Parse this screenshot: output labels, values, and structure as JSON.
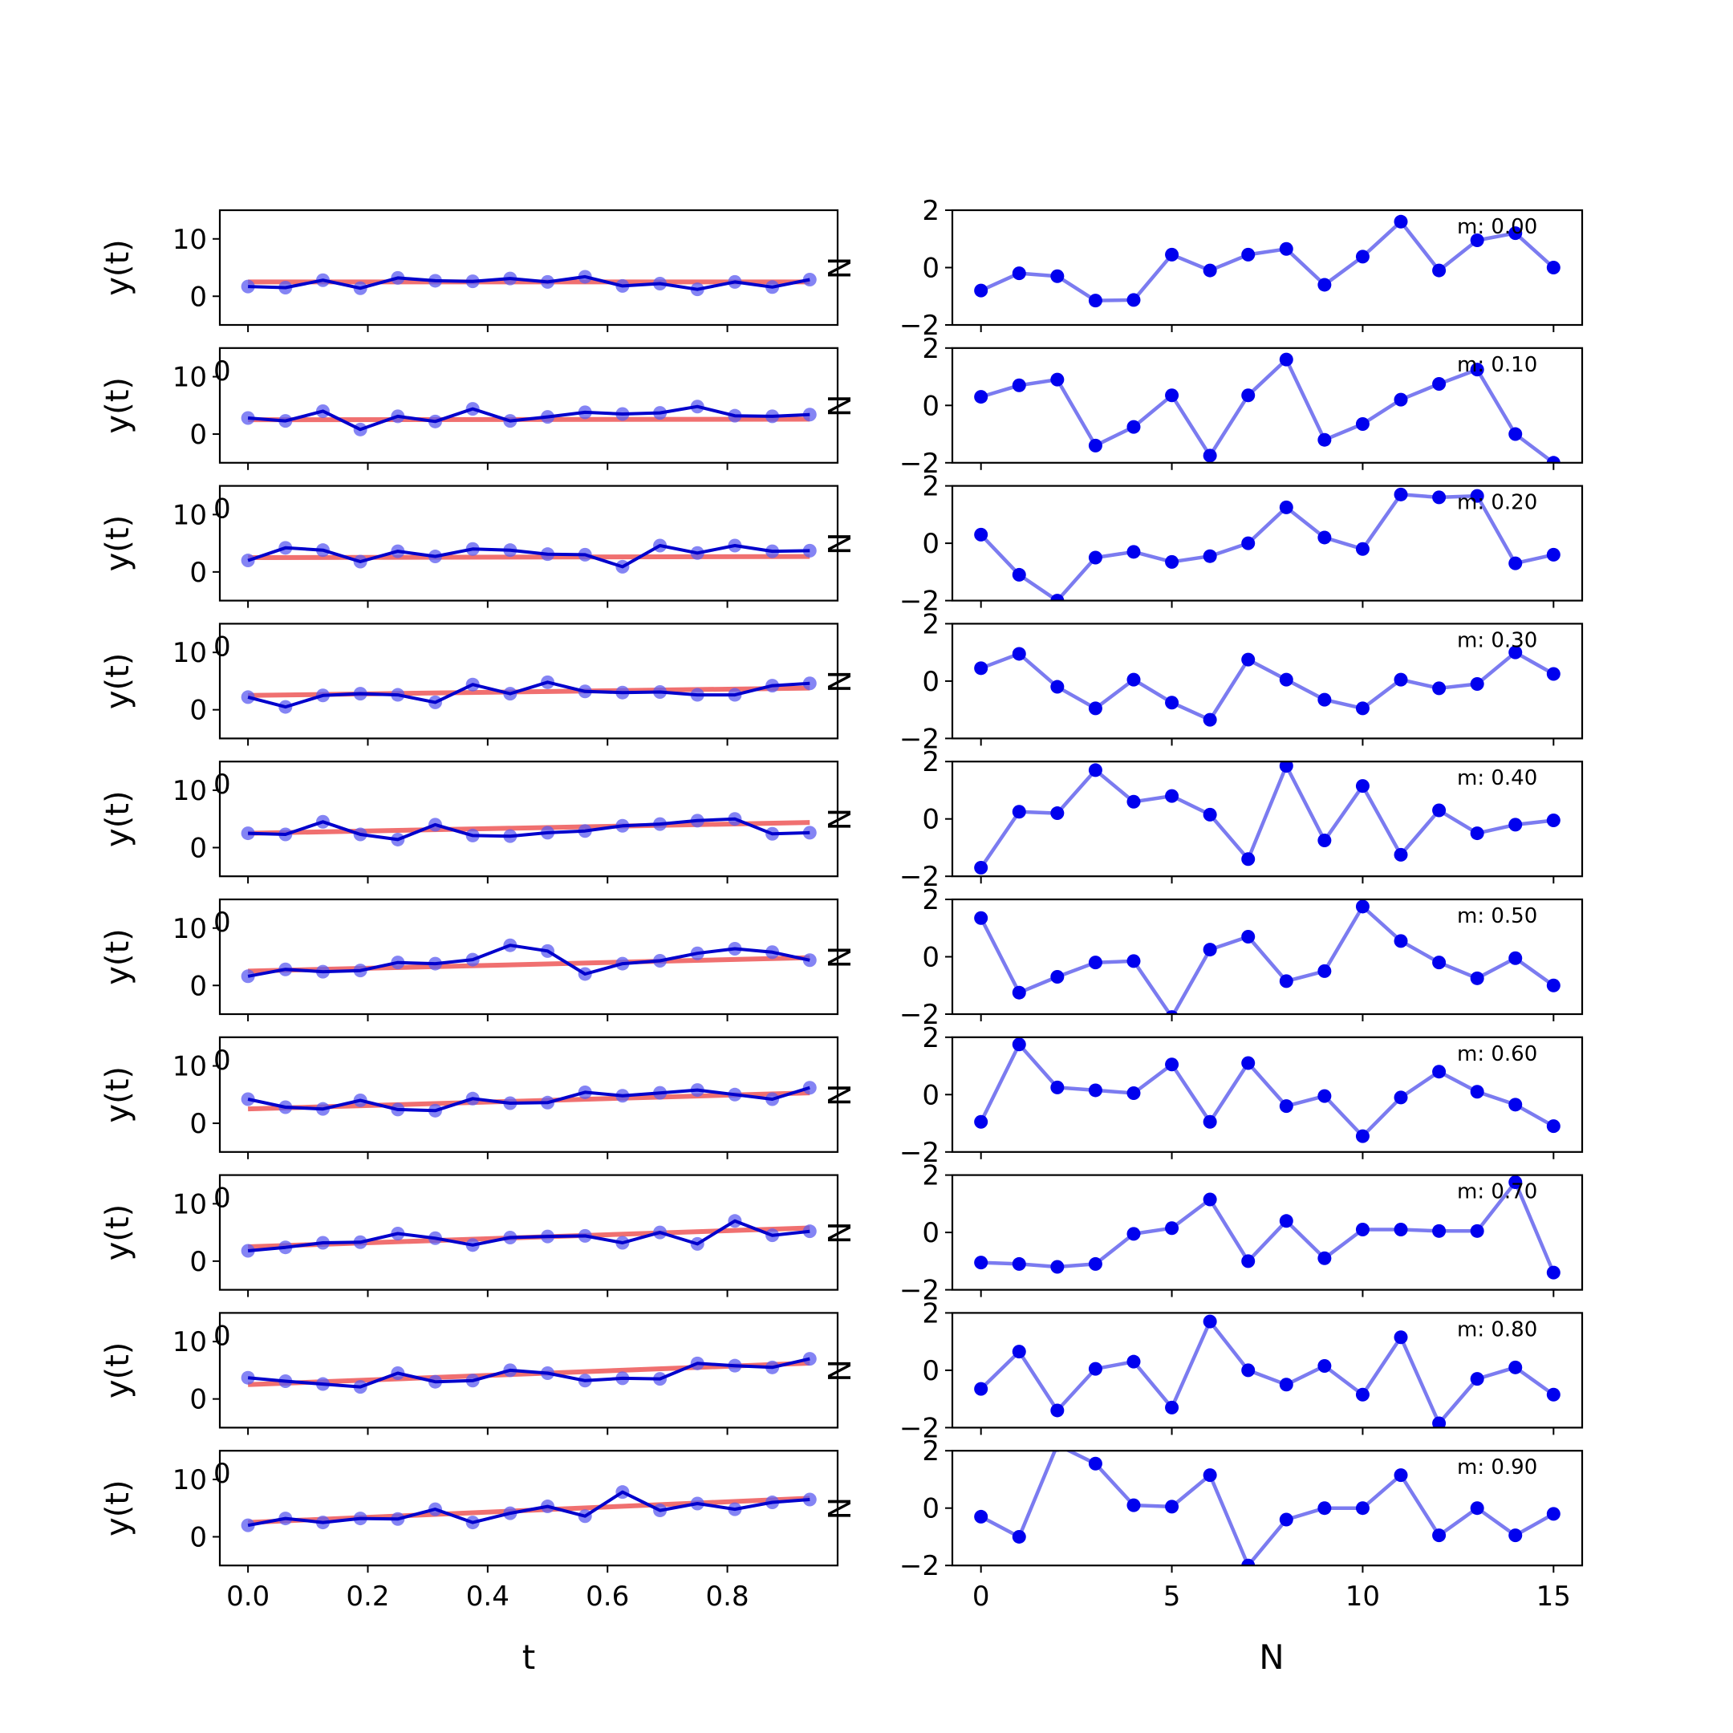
{
  "chart_data": {
    "type": "line",
    "t": [
      0.0,
      0.0625,
      0.125,
      0.1875,
      0.25,
      0.3125,
      0.375,
      0.4375,
      0.5,
      0.5625,
      0.625,
      0.6875,
      0.75,
      0.8125,
      0.875,
      0.9375
    ],
    "n": [
      0,
      1,
      2,
      3,
      4,
      5,
      6,
      7,
      8,
      9,
      10,
      11,
      12,
      13,
      14,
      15
    ],
    "left_axes": {
      "xlabel": "t",
      "ylabel": "y(t)",
      "xlim": [
        -0.047,
        0.984
      ],
      "ylim": [
        -5,
        15
      ],
      "xticks": [
        "0.0",
        "0.2",
        "0.4",
        "0.6",
        "0.8"
      ],
      "xtick_values": [
        0.0,
        0.2,
        0.4,
        0.6,
        0.8
      ],
      "yticks": [
        "0",
        "10"
      ],
      "ytick_values": [
        0,
        10
      ],
      "right_spine_label": "N"
    },
    "right_axes": {
      "xlabel": "N",
      "xlim": [
        -0.75,
        15.75
      ],
      "ylim": [
        -2,
        2
      ],
      "xticks": [
        "0",
        "5",
        "10",
        "15"
      ],
      "xtick_values": [
        0,
        5,
        10,
        15
      ],
      "yticks": [
        "−2",
        "0",
        "2"
      ],
      "ytick_values": [
        -2,
        0,
        2
      ]
    },
    "colors": {
      "data_line": "#0000cc",
      "data_markers": "#5b5bf0",
      "fit_line": "#f07070",
      "noise_line": "#7b7bf0",
      "noise_markers": "#0000ee"
    },
    "panels": [
      {
        "label": "m: 0.00",
        "fit": [
          2.5,
          2.5
        ],
        "y": [
          1.7,
          1.5,
          2.8,
          1.4,
          3.2,
          2.7,
          2.6,
          3.1,
          2.5,
          3.4,
          1.8,
          2.2,
          1.2,
          2.5,
          1.6,
          2.9
        ],
        "noise": [
          -0.8,
          -0.2,
          -0.3,
          -1.15,
          -1.13,
          0.45,
          -0.1,
          0.45,
          0.65,
          -0.6,
          0.38,
          1.6,
          -0.1,
          0.95,
          1.2,
          0.0
        ]
      },
      {
        "label": "m: 0.10",
        "fit": [
          2.5,
          2.59
        ],
        "y": [
          2.8,
          2.3,
          4.0,
          0.8,
          3.1,
          2.2,
          4.4,
          2.3,
          3.0,
          3.8,
          3.5,
          3.7,
          4.8,
          3.2,
          3.1,
          3.4
        ],
        "noise": [
          0.3,
          0.7,
          0.9,
          -1.4,
          -0.75,
          0.35,
          -1.75,
          0.35,
          1.6,
          -1.2,
          -0.65,
          0.2,
          0.75,
          1.25,
          -1.0,
          -2.0
        ]
      },
      {
        "label": "m: 0.20",
        "fit": [
          2.5,
          2.69
        ],
        "y": [
          2.0,
          4.2,
          3.8,
          1.8,
          3.6,
          2.7,
          4.0,
          3.8,
          3.1,
          3.0,
          0.9,
          4.6,
          3.3,
          4.6,
          3.6,
          3.7
        ],
        "noise": [
          0.3,
          -1.1,
          -2.0,
          -0.5,
          -0.3,
          -0.65,
          -0.45,
          0.0,
          1.25,
          0.2,
          -0.2,
          1.7,
          1.6,
          1.65,
          -0.7,
          -0.4
        ]
      },
      {
        "label": "m: 0.30",
        "fit": [
          2.5,
          3.78
        ],
        "y": [
          2.2,
          0.5,
          2.5,
          2.8,
          2.6,
          1.3,
          4.4,
          2.8,
          4.8,
          3.2,
          3.0,
          3.1,
          2.6,
          2.6,
          4.2,
          4.6
        ],
        "noise": [
          0.45,
          0.95,
          -0.2,
          -0.95,
          0.05,
          -0.75,
          -1.35,
          0.75,
          0.05,
          -0.65,
          -0.95,
          0.05,
          -0.25,
          -0.1,
          1.0,
          0.25
        ]
      },
      {
        "label": "m: 0.40",
        "fit": [
          2.5,
          4.38
        ],
        "y": [
          2.5,
          2.3,
          4.5,
          2.3,
          1.4,
          4.0,
          2.1,
          2.0,
          2.6,
          2.9,
          3.8,
          4.1,
          4.7,
          5.0,
          2.4,
          2.6
        ],
        "noise": [
          -1.7,
          0.25,
          0.2,
          1.7,
          0.6,
          0.8,
          0.15,
          -1.4,
          1.85,
          -0.75,
          1.15,
          -1.25,
          0.3,
          -0.5,
          -0.2,
          -0.05
        ]
      },
      {
        "label": "m: 0.50",
        "fit": [
          2.5,
          4.84
        ],
        "y": [
          1.6,
          2.8,
          2.4,
          2.6,
          4.0,
          3.8,
          4.5,
          7.0,
          6.0,
          2.0,
          3.8,
          4.3,
          5.6,
          6.4,
          5.8,
          4.4
        ],
        "noise": [
          1.35,
          -1.25,
          -0.7,
          -0.2,
          -0.15,
          -2.1,
          0.25,
          0.7,
          -0.85,
          -0.5,
          1.75,
          0.55,
          -0.2,
          -0.75,
          -0.05,
          -1.0
        ]
      },
      {
        "label": "m: 0.60",
        "fit": [
          2.5,
          5.31
        ],
        "y": [
          4.2,
          2.8,
          2.5,
          4.0,
          2.4,
          2.2,
          4.3,
          3.5,
          3.6,
          5.4,
          4.8,
          5.3,
          5.8,
          5.0,
          4.2,
          6.2
        ],
        "noise": [
          -0.95,
          1.75,
          0.25,
          0.15,
          0.05,
          1.05,
          -0.95,
          1.1,
          -0.4,
          -0.05,
          -1.45,
          -0.1,
          0.8,
          0.1,
          -0.35,
          -1.1
        ]
      },
      {
        "label": "m: 0.70",
        "fit": [
          2.5,
          5.78
        ],
        "y": [
          1.8,
          2.4,
          3.2,
          3.3,
          4.8,
          4.0,
          2.8,
          4.1,
          4.3,
          4.4,
          3.2,
          5.0,
          3.0,
          7.0,
          4.5,
          5.2
        ],
        "noise": [
          -1.05,
          -1.1,
          -1.2,
          -1.1,
          -0.05,
          0.15,
          1.15,
          -1.0,
          0.4,
          -0.9,
          0.1,
          0.1,
          0.05,
          0.05,
          1.75,
          -1.4
        ]
      },
      {
        "label": "m: 0.80",
        "fit": [
          2.5,
          6.25
        ],
        "y": [
          3.7,
          3.1,
          2.6,
          2.1,
          4.5,
          3.0,
          3.2,
          5.0,
          4.5,
          3.2,
          3.6,
          3.5,
          6.2,
          5.8,
          5.5,
          7.0
        ],
        "noise": [
          -0.65,
          0.65,
          -1.4,
          0.05,
          0.3,
          -1.3,
          1.7,
          0.0,
          -0.5,
          0.15,
          -0.85,
          1.15,
          -1.85,
          -0.3,
          0.1,
          -0.85
        ]
      },
      {
        "label": "m: 0.90",
        "fit": [
          2.5,
          6.72
        ],
        "y": [
          2.0,
          3.2,
          2.5,
          3.2,
          3.1,
          4.8,
          2.5,
          4.1,
          5.3,
          3.6,
          7.8,
          4.6,
          5.8,
          4.8,
          6.0,
          6.5
        ],
        "noise": [
          -0.3,
          -1.0,
          2.2,
          1.55,
          0.1,
          0.05,
          1.15,
          -2.0,
          -0.4,
          0.0,
          0.0,
          1.15,
          -0.95,
          0.0,
          -0.95,
          -0.2
        ]
      }
    ]
  }
}
